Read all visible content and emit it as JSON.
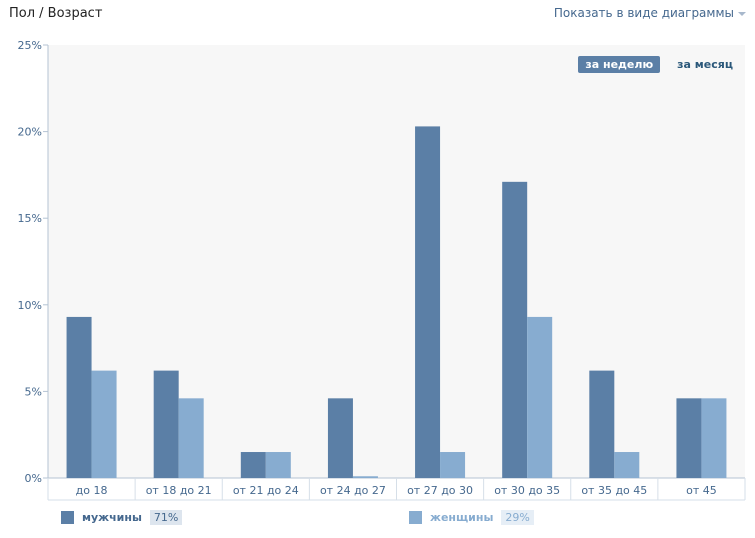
{
  "header": {
    "title": "Пол / Возраст",
    "view_select": "Показать в виде диаграммы"
  },
  "period": {
    "week": "за неделю",
    "month": "за месяц"
  },
  "legend": {
    "men": {
      "label": "мужчины",
      "percent": "71%"
    },
    "women": {
      "label": "женщины",
      "percent": "29%"
    }
  },
  "colors": {
    "men": "#5b7fa6",
    "women": "#87acd0",
    "axis": "#b4c3d3",
    "tick_text": "#45688e"
  },
  "chart_data": {
    "type": "bar",
    "title": "",
    "xlabel": "",
    "ylabel": "",
    "ylim": [
      0,
      25
    ],
    "yticks": [
      "0%",
      "5%",
      "10%",
      "15%",
      "20%",
      "25%"
    ],
    "grid": true,
    "categories": [
      "до 18",
      "от 18 до 21",
      "от 21 до 24",
      "от 24 до 27",
      "от 27 до 30",
      "от 30 до 35",
      "от 35 до 45",
      "от 45"
    ],
    "series": [
      {
        "name": "мужчины",
        "values": [
          9.3,
          6.2,
          1.5,
          4.6,
          20.3,
          17.1,
          6.2,
          4.6
        ]
      },
      {
        "name": "женщины",
        "values": [
          6.2,
          4.6,
          1.5,
          0.1,
          1.5,
          9.3,
          1.5,
          4.6
        ]
      }
    ]
  }
}
